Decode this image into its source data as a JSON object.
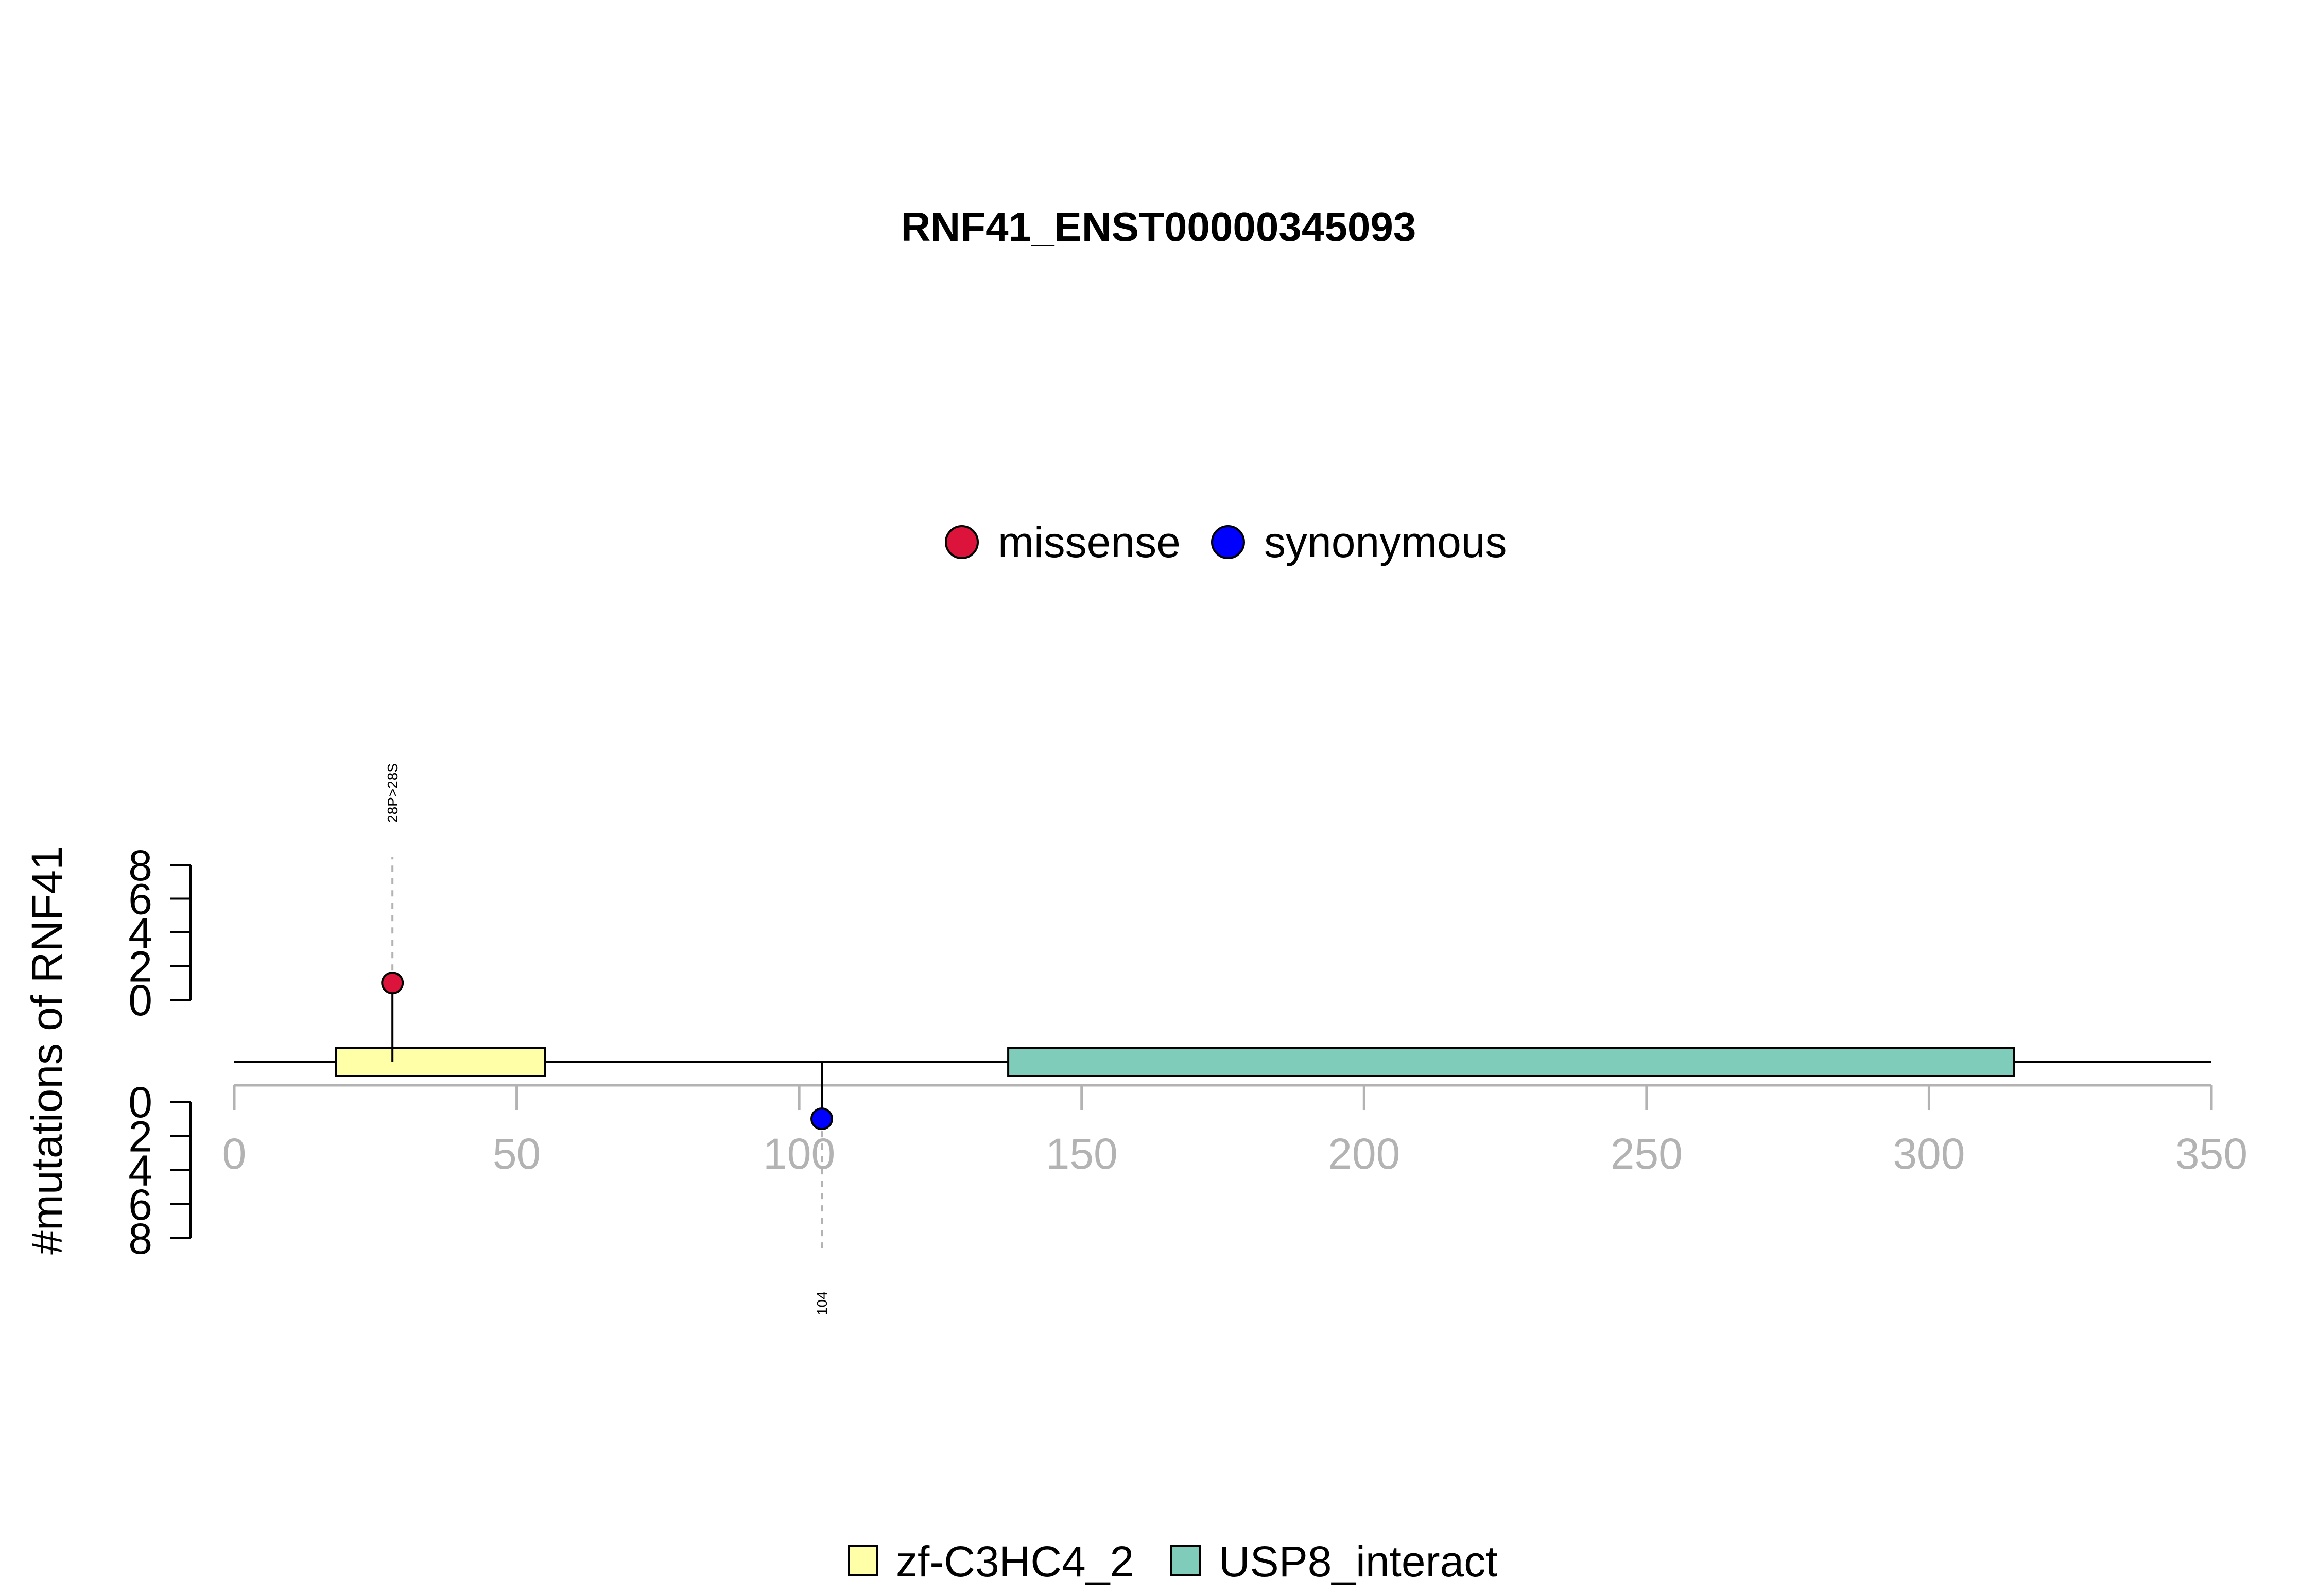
{
  "chart_data": {
    "type": "lollipop",
    "title": "RNF41_ENST00000345093",
    "ylabel": "#mutations of RNF41",
    "protein_length": 350,
    "x_range": [
      0,
      350
    ],
    "x_ticks": [
      0,
      50,
      100,
      150,
      200,
      250,
      300,
      350
    ],
    "y_ticks_top": [
      0,
      2,
      4,
      6,
      8
    ],
    "y_ticks_bottom": [
      0,
      2,
      4,
      6,
      8
    ],
    "y_range": [
      0,
      8
    ],
    "mutation_legend": [
      {
        "name": "missense",
        "color": "#DC143C"
      },
      {
        "name": "synonymous",
        "color": "#0000FF"
      }
    ],
    "domain_legend": [
      {
        "name": "zf-C3HC4_2",
        "color": "#FFFFA8"
      },
      {
        "name": "USP8_interact",
        "color": "#80CCBB"
      }
    ],
    "domains": [
      {
        "name": "zf-C3HC4_2",
        "start": 18,
        "end": 55,
        "color": "#FFFFA8"
      },
      {
        "name": "USP8_interact",
        "start": 137,
        "end": 315,
        "color": "#80CCBB"
      }
    ],
    "mutations": [
      {
        "position": 28,
        "count": 1,
        "type": "missense",
        "color": "#DC143C",
        "side": "top",
        "label": "28P>28S"
      },
      {
        "position": 104,
        "count": 1,
        "type": "synonymous",
        "color": "#0000FF",
        "side": "bottom",
        "label": "104"
      }
    ]
  }
}
